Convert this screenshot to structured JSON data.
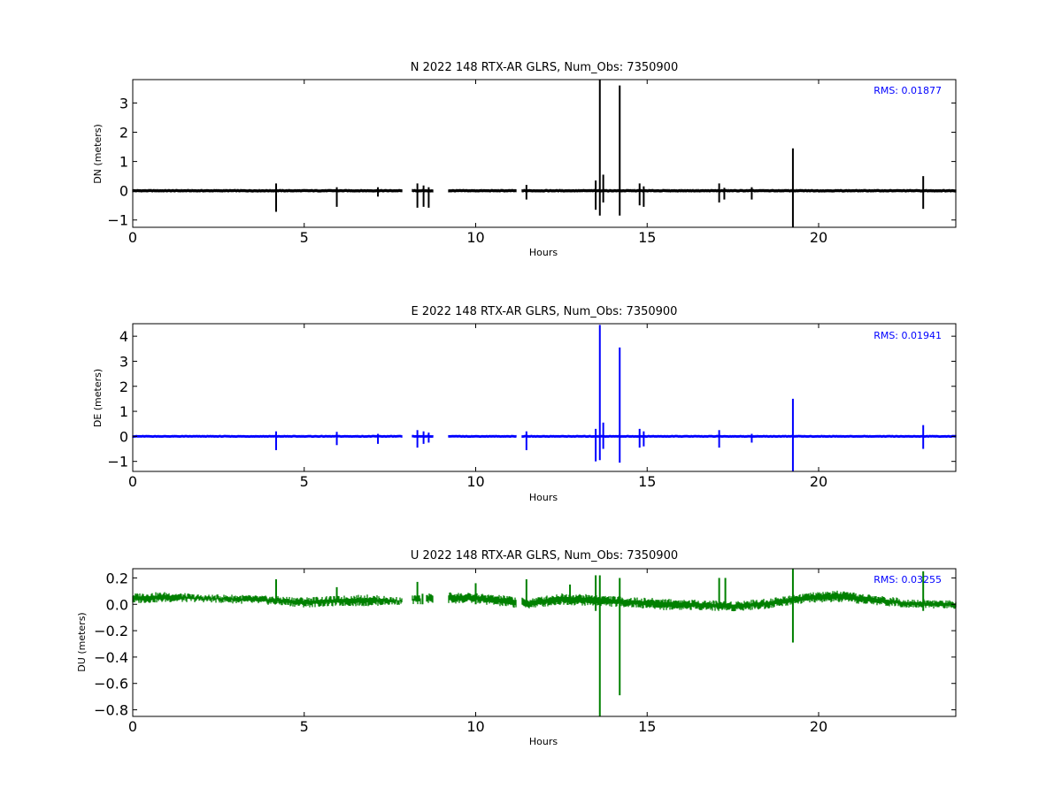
{
  "chart_data": [
    {
      "type": "line",
      "title": "N 2022 148 RTX-AR  GLRS, Num_Obs: 7350900",
      "xlabel": "Hours",
      "ylabel": "DN (meters)",
      "xlim": [
        0,
        24
      ],
      "ylim": [
        -1.25,
        3.8
      ],
      "xticks": [
        0,
        5,
        10,
        15,
        20
      ],
      "yticks": [
        -1,
        0,
        1,
        2,
        3
      ],
      "color": "#000000",
      "annotation": "RMS:  0.01877",
      "baseline_band": [
        -0.05,
        0.05
      ],
      "gaps": [
        [
          7.85,
          8.15
        ],
        [
          8.75,
          9.2
        ],
        [
          11.2,
          11.35
        ]
      ],
      "spikes": [
        {
          "x": 4.18,
          "min": -0.72,
          "max": 0.25
        },
        {
          "x": 5.95,
          "min": -0.55,
          "max": 0.12
        },
        {
          "x": 7.15,
          "min": -0.2,
          "max": 0.12
        },
        {
          "x": 8.3,
          "min": -0.58,
          "max": 0.25
        },
        {
          "x": 8.48,
          "min": -0.55,
          "max": 0.18
        },
        {
          "x": 8.63,
          "min": -0.58,
          "max": 0.12
        },
        {
          "x": 11.48,
          "min": -0.3,
          "max": 0.2
        },
        {
          "x": 13.5,
          "min": -0.65,
          "max": 0.35
        },
        {
          "x": 13.62,
          "min": -0.85,
          "max": 3.8
        },
        {
          "x": 13.72,
          "min": -0.4,
          "max": 0.55
        },
        {
          "x": 14.2,
          "min": -0.85,
          "max": 3.6
        },
        {
          "x": 14.78,
          "min": -0.5,
          "max": 0.25
        },
        {
          "x": 14.9,
          "min": -0.55,
          "max": 0.15
        },
        {
          "x": 17.1,
          "min": -0.4,
          "max": 0.25
        },
        {
          "x": 17.25,
          "min": -0.3,
          "max": 0.1
        },
        {
          "x": 18.05,
          "min": -0.3,
          "max": 0.12
        },
        {
          "x": 19.25,
          "min": -1.25,
          "max": 1.45
        },
        {
          "x": 23.05,
          "min": -0.62,
          "max": 0.5
        }
      ]
    },
    {
      "type": "line",
      "title": "E 2022 148 RTX-AR  GLRS, Num_Obs: 7350900",
      "xlabel": "Hours",
      "ylabel": "DE (meters)",
      "xlim": [
        0,
        24
      ],
      "ylim": [
        -1.4,
        4.5
      ],
      "xticks": [
        0,
        5,
        10,
        15,
        20
      ],
      "yticks": [
        -1,
        0,
        1,
        2,
        3,
        4
      ],
      "color": "#0000ff",
      "annotation": "RMS:  0.01941",
      "baseline_band": [
        -0.05,
        0.05
      ],
      "gaps": [
        [
          7.85,
          8.15
        ],
        [
          8.75,
          9.2
        ],
        [
          11.2,
          11.35
        ]
      ],
      "spikes": [
        {
          "x": 4.18,
          "min": -0.55,
          "max": 0.2
        },
        {
          "x": 5.95,
          "min": -0.35,
          "max": 0.18
        },
        {
          "x": 7.15,
          "min": -0.3,
          "max": 0.1
        },
        {
          "x": 8.3,
          "min": -0.45,
          "max": 0.25
        },
        {
          "x": 8.48,
          "min": -0.3,
          "max": 0.2
        },
        {
          "x": 8.63,
          "min": -0.25,
          "max": 0.15
        },
        {
          "x": 11.48,
          "min": -0.55,
          "max": 0.2
        },
        {
          "x": 13.5,
          "min": -1.0,
          "max": 0.3
        },
        {
          "x": 13.62,
          "min": -0.95,
          "max": 4.45
        },
        {
          "x": 13.72,
          "min": -0.5,
          "max": 0.55
        },
        {
          "x": 14.2,
          "min": -1.05,
          "max": 3.55
        },
        {
          "x": 14.78,
          "min": -0.45,
          "max": 0.3
        },
        {
          "x": 14.9,
          "min": -0.4,
          "max": 0.2
        },
        {
          "x": 17.1,
          "min": -0.45,
          "max": 0.25
        },
        {
          "x": 18.05,
          "min": -0.25,
          "max": 0.1
        },
        {
          "x": 19.25,
          "min": -1.4,
          "max": 1.5
        },
        {
          "x": 23.05,
          "min": -0.5,
          "max": 0.45
        }
      ]
    },
    {
      "type": "line",
      "title": "U 2022 148 RTX-AR  GLRS, Num_Obs: 7350900",
      "xlabel": "Hours",
      "ylabel": "DU (meters)",
      "xlim": [
        0,
        24
      ],
      "ylim": [
        -0.85,
        0.27
      ],
      "xticks": [
        0,
        5,
        10,
        15,
        20
      ],
      "yticks": [
        -0.8,
        -0.6,
        -0.4,
        -0.2,
        0.0,
        0.2
      ],
      "ytick_labels": [
        "−0.8",
        "−0.6",
        "−0.4",
        "−0.2",
        "0.0",
        "0.2"
      ],
      "color": "#008000",
      "annotation": "RMS:  0.03255",
      "band_profile": [
        [
          0.0,
          0.07,
          0.02
        ],
        [
          1.0,
          0.08,
          0.03
        ],
        [
          2.0,
          0.06,
          0.03
        ],
        [
          3.0,
          0.06,
          0.02
        ],
        [
          4.0,
          0.05,
          0.01
        ],
        [
          5.0,
          0.04,
          -0.01
        ],
        [
          6.0,
          0.05,
          0.0
        ],
        [
          6.8,
          0.06,
          0.0
        ],
        [
          7.8,
          0.04,
          0.01
        ],
        [
          9.0,
          0.08,
          0.02
        ],
        [
          10.0,
          0.07,
          0.02
        ],
        [
          11.0,
          0.05,
          -0.01
        ],
        [
          11.5,
          0.03,
          -0.02
        ],
        [
          12.5,
          0.07,
          0.01
        ],
        [
          13.5,
          0.06,
          0.0
        ],
        [
          14.5,
          0.04,
          -0.01
        ],
        [
          15.5,
          0.03,
          -0.03
        ],
        [
          16.5,
          0.02,
          -0.03
        ],
        [
          17.5,
          0.01,
          -0.04
        ],
        [
          18.5,
          0.03,
          -0.02
        ],
        [
          19.5,
          0.07,
          0.02
        ],
        [
          20.5,
          0.09,
          0.03
        ],
        [
          21.5,
          0.06,
          0.01
        ],
        [
          22.5,
          0.03,
          -0.01
        ],
        [
          23.5,
          0.02,
          -0.02
        ],
        [
          24.0,
          0.02,
          -0.02
        ]
      ],
      "gaps": [
        [
          7.85,
          8.15
        ],
        [
          8.4,
          8.55
        ],
        [
          8.75,
          9.2
        ],
        [
          11.2,
          11.35
        ]
      ],
      "spikes": [
        {
          "x": 4.18,
          "min": 0.02,
          "max": 0.19
        },
        {
          "x": 5.95,
          "min": 0.02,
          "max": 0.13
        },
        {
          "x": 8.3,
          "min": 0.02,
          "max": 0.17
        },
        {
          "x": 8.45,
          "min": 0.0,
          "max": 0.08
        },
        {
          "x": 10.0,
          "min": 0.0,
          "max": 0.16
        },
        {
          "x": 11.48,
          "min": -0.01,
          "max": 0.19
        },
        {
          "x": 12.75,
          "min": 0.0,
          "max": 0.15
        },
        {
          "x": 13.5,
          "min": -0.05,
          "max": 0.22
        },
        {
          "x": 13.62,
          "min": -0.85,
          "max": 0.22
        },
        {
          "x": 14.2,
          "min": -0.69,
          "max": 0.2
        },
        {
          "x": 17.1,
          "min": -0.02,
          "max": 0.2
        },
        {
          "x": 17.28,
          "min": -0.02,
          "max": 0.2
        },
        {
          "x": 19.25,
          "min": -0.29,
          "max": 0.27
        },
        {
          "x": 23.05,
          "min": -0.05,
          "max": 0.25
        }
      ]
    }
  ]
}
